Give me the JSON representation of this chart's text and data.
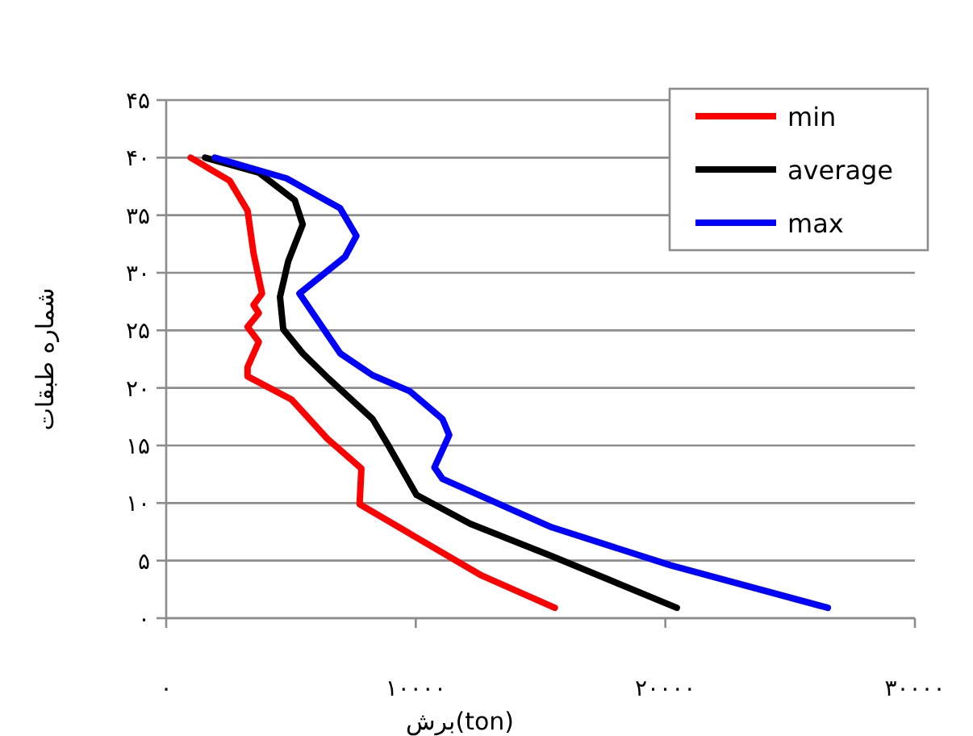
{
  "chart_data": {
    "type": "line",
    "xlabel": "برش(ton)",
    "ylabel": "شماره طبقات",
    "xlim": [
      0,
      30000
    ],
    "ylim": [
      0,
      45
    ],
    "xticks": [
      {
        "value": 0,
        "label": "۰"
      },
      {
        "value": 10000,
        "label": "۱۰۰۰۰"
      },
      {
        "value": 20000,
        "label": "۲۰۰۰۰"
      },
      {
        "value": 30000,
        "label": "۳۰۰۰۰"
      }
    ],
    "yticks": [
      {
        "value": 0,
        "label": "۰"
      },
      {
        "value": 5,
        "label": "۵"
      },
      {
        "value": 10,
        "label": "۱۰"
      },
      {
        "value": 15,
        "label": "۱۵"
      },
      {
        "value": 20,
        "label": "۲۰"
      },
      {
        "value": 25,
        "label": "۲۵"
      },
      {
        "value": 30,
        "label": "۳۰"
      },
      {
        "value": 35,
        "label": "۳۵"
      },
      {
        "value": 40,
        "label": "۴۰"
      },
      {
        "value": 45,
        "label": "۴۵"
      }
    ],
    "grid": "y",
    "legend": "top right",
    "marker": "none",
    "line_style": "solid",
    "series": [
      {
        "name": "min",
        "color": "#ff0000",
        "x": [
          15570,
          12640,
          10030,
          7750,
          7820,
          6450,
          5020,
          3260,
          3260,
          3710,
          3260,
          3710,
          3500,
          3840,
          3500,
          3260,
          2540,
          980
        ],
        "values": [
          0.9,
          3.7,
          7.0,
          9.9,
          13,
          15.6,
          19,
          21,
          21.8,
          24,
          25.3,
          26.5,
          27.2,
          28.2,
          31.7,
          35.4,
          38,
          40
        ]
      },
      {
        "name": "average",
        "color": "#000000",
        "x": [
          20460,
          15440,
          12180,
          10030,
          8930,
          8270,
          6510,
          5470,
          4690,
          4560,
          4890,
          5470,
          5150,
          3710,
          1560
        ],
        "values": [
          0.9,
          5.4,
          8.2,
          10.7,
          14.9,
          17.3,
          20.8,
          23,
          25.1,
          27.9,
          31,
          34.2,
          36.3,
          38.7,
          40
        ]
      },
      {
        "name": "max",
        "color": "#0000ff",
        "x": [
          26510,
          20200,
          15440,
          11070,
          10750,
          11340,
          11070,
          9770,
          8270,
          6970,
          5340,
          7170,
          7620,
          6970,
          4820,
          1950
        ],
        "values": [
          0.9,
          4.6,
          7.9,
          12.1,
          13.1,
          15.9,
          17.3,
          19.7,
          21.1,
          23,
          28.2,
          31.4,
          33.2,
          35.6,
          38.2,
          40
        ]
      }
    ]
  }
}
